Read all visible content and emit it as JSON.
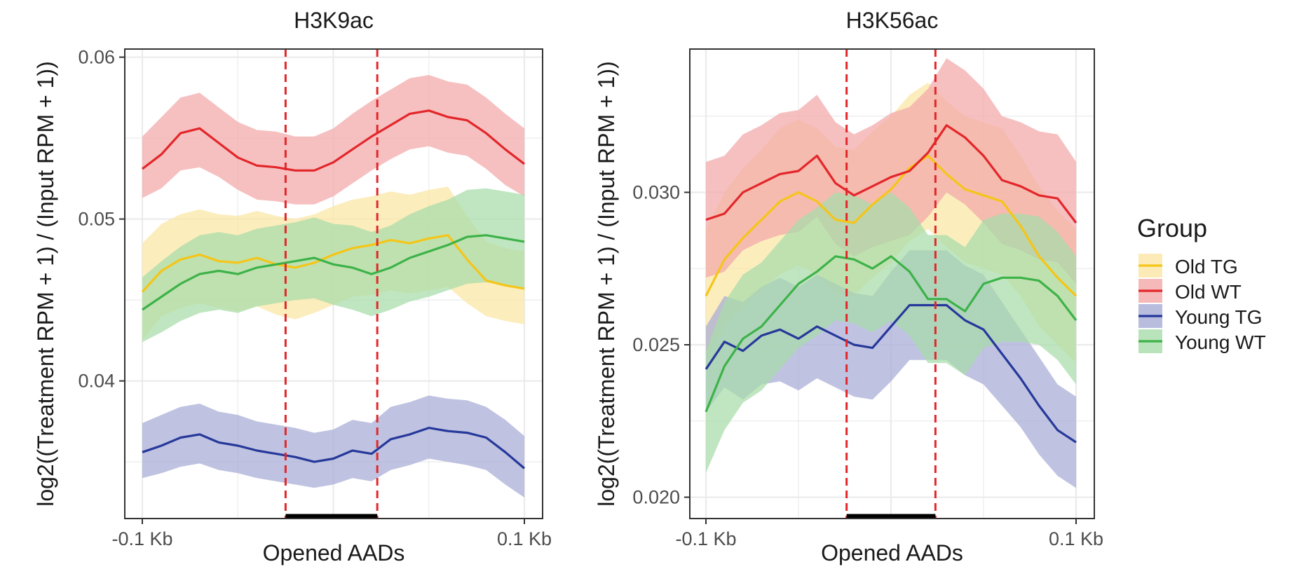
{
  "chart_data": [
    {
      "type": "line",
      "title": "H3K9ac",
      "xlabel": "Opened AADs",
      "ylabel": "log2((Treatment RPM + 1) / (Input RPM + 1))",
      "x_ticks": [
        "-0.1 Kb",
        "0.1 Kb"
      ],
      "y_ticks": [
        "0.04",
        "0.05",
        "0.06"
      ],
      "y_tick_values": [
        0.04,
        0.05,
        0.06
      ],
      "xlim": [
        -0.1,
        0.1
      ],
      "ylim": [
        0.0315,
        0.0605
      ],
      "vlines": [
        -0.025,
        0.023
      ],
      "region": [
        -0.025,
        0.023
      ],
      "x": [
        -0.1,
        -0.09,
        -0.08,
        -0.07,
        -0.06,
        -0.05,
        -0.04,
        -0.03,
        -0.02,
        -0.01,
        0.0,
        0.01,
        0.02,
        0.03,
        0.04,
        0.05,
        0.06,
        0.07,
        0.08,
        0.09,
        0.1
      ],
      "series": [
        {
          "name": "Old TG",
          "values": [
            0.0455,
            0.0468,
            0.0475,
            0.0478,
            0.0474,
            0.0473,
            0.0476,
            0.0472,
            0.047,
            0.0473,
            0.0478,
            0.0482,
            0.0484,
            0.0487,
            0.0485,
            0.0488,
            0.049,
            0.0475,
            0.0462,
            0.0459,
            0.0457
          ],
          "lower": [
            0.0425,
            0.044,
            0.0445,
            0.0448,
            0.0445,
            0.0443,
            0.0446,
            0.0441,
            0.0438,
            0.0442,
            0.0447,
            0.0452,
            0.0453,
            0.0456,
            0.0454,
            0.0456,
            0.0458,
            0.0448,
            0.044,
            0.0437,
            0.0435
          ],
          "upper": [
            0.0485,
            0.0497,
            0.0503,
            0.0506,
            0.0503,
            0.0502,
            0.0505,
            0.0502,
            0.05,
            0.0503,
            0.0508,
            0.0512,
            0.0514,
            0.0517,
            0.0515,
            0.0518,
            0.052,
            0.0502,
            0.0486,
            0.0482,
            0.048
          ]
        },
        {
          "name": "Old WT",
          "values": [
            0.0531,
            0.054,
            0.0553,
            0.0556,
            0.0547,
            0.0538,
            0.0533,
            0.0532,
            0.053,
            0.053,
            0.0535,
            0.0543,
            0.0551,
            0.0558,
            0.0565,
            0.0567,
            0.0563,
            0.0561,
            0.0553,
            0.0543,
            0.0534
          ],
          "lower": [
            0.0513,
            0.0519,
            0.053,
            0.0532,
            0.0526,
            0.0518,
            0.0512,
            0.0511,
            0.0509,
            0.0509,
            0.0514,
            0.0522,
            0.053,
            0.0537,
            0.0543,
            0.0545,
            0.0541,
            0.0539,
            0.0531,
            0.0521,
            0.0514
          ],
          "upper": [
            0.0551,
            0.0563,
            0.0575,
            0.0578,
            0.0569,
            0.056,
            0.0555,
            0.0554,
            0.0551,
            0.0551,
            0.0556,
            0.0565,
            0.0573,
            0.058,
            0.0587,
            0.0589,
            0.0585,
            0.0583,
            0.0575,
            0.0565,
            0.0556
          ]
        },
        {
          "name": "Young TG",
          "values": [
            0.0356,
            0.036,
            0.0365,
            0.0367,
            0.0362,
            0.036,
            0.0357,
            0.0355,
            0.0353,
            0.035,
            0.0352,
            0.0357,
            0.0355,
            0.0364,
            0.0367,
            0.0371,
            0.0369,
            0.0368,
            0.0365,
            0.0356,
            0.0346
          ],
          "lower": [
            0.034,
            0.0343,
            0.0347,
            0.0349,
            0.0345,
            0.0343,
            0.034,
            0.0338,
            0.0336,
            0.0334,
            0.0336,
            0.034,
            0.0338,
            0.0345,
            0.0348,
            0.0352,
            0.035,
            0.0348,
            0.0345,
            0.0336,
            0.0328
          ],
          "upper": [
            0.0374,
            0.0379,
            0.0384,
            0.0386,
            0.0381,
            0.0379,
            0.0375,
            0.0373,
            0.0371,
            0.0368,
            0.037,
            0.0376,
            0.0374,
            0.0384,
            0.0387,
            0.0391,
            0.0389,
            0.0388,
            0.0384,
            0.0376,
            0.0366
          ]
        },
        {
          "name": "Young WT",
          "values": [
            0.0444,
            0.0452,
            0.046,
            0.0466,
            0.0468,
            0.0466,
            0.047,
            0.0472,
            0.0474,
            0.0476,
            0.0472,
            0.047,
            0.0466,
            0.047,
            0.0476,
            0.048,
            0.0484,
            0.0489,
            0.049,
            0.0488,
            0.0486
          ],
          "lower": [
            0.0424,
            0.043,
            0.0437,
            0.0442,
            0.0444,
            0.0442,
            0.0446,
            0.0448,
            0.045,
            0.0451,
            0.0447,
            0.0444,
            0.044,
            0.0444,
            0.0449,
            0.0452,
            0.0456,
            0.046,
            0.0461,
            0.0459,
            0.0457
          ],
          "upper": [
            0.0464,
            0.0474,
            0.0483,
            0.049,
            0.0492,
            0.049,
            0.0494,
            0.0496,
            0.0498,
            0.0501,
            0.0497,
            0.0496,
            0.0492,
            0.0496,
            0.0503,
            0.0508,
            0.0512,
            0.0518,
            0.0519,
            0.0517,
            0.0515
          ]
        }
      ]
    },
    {
      "type": "line",
      "title": "H3K56ac",
      "xlabel": "Opened AADs",
      "ylabel": "log2((Treatment RPM + 1) / (Input RPM + 1))",
      "x_ticks": [
        "-0.1 Kb",
        "0.1 Kb"
      ],
      "y_ticks": [
        "0.020",
        "0.025",
        "0.030"
      ],
      "y_tick_values": [
        0.02,
        0.025,
        0.03
      ],
      "xlim": [
        -0.1,
        0.1
      ],
      "ylim": [
        0.0193,
        0.0347
      ],
      "vlines": [
        -0.024,
        0.024
      ],
      "region": [
        -0.024,
        0.024
      ],
      "x": [
        -0.1,
        -0.09,
        -0.08,
        -0.07,
        -0.06,
        -0.05,
        -0.04,
        -0.03,
        -0.02,
        -0.01,
        0.0,
        0.01,
        0.02,
        0.03,
        0.04,
        0.05,
        0.06,
        0.07,
        0.08,
        0.09,
        0.1
      ],
      "series": [
        {
          "name": "Old TG",
          "values": [
            0.0266,
            0.0278,
            0.0285,
            0.0291,
            0.0297,
            0.03,
            0.0297,
            0.0291,
            0.029,
            0.0296,
            0.0301,
            0.0308,
            0.0312,
            0.0306,
            0.0301,
            0.0299,
            0.0297,
            0.0289,
            0.0279,
            0.0272,
            0.0266
          ],
          "lower": [
            0.0244,
            0.0256,
            0.0262,
            0.0268,
            0.0273,
            0.0276,
            0.0273,
            0.0267,
            0.0266,
            0.0272,
            0.0277,
            0.0284,
            0.0288,
            0.0282,
            0.0277,
            0.0275,
            0.0273,
            0.0266,
            0.0256,
            0.025,
            0.0244
          ],
          "upper": [
            0.0288,
            0.03,
            0.0308,
            0.0314,
            0.0321,
            0.0324,
            0.0321,
            0.0315,
            0.0314,
            0.032,
            0.0325,
            0.0332,
            0.0336,
            0.033,
            0.0325,
            0.0323,
            0.0321,
            0.0312,
            0.0302,
            0.0294,
            0.0288
          ]
        },
        {
          "name": "Old WT",
          "values": [
            0.0291,
            0.0293,
            0.03,
            0.0303,
            0.0306,
            0.0307,
            0.0312,
            0.0303,
            0.0299,
            0.0302,
            0.0305,
            0.0307,
            0.0313,
            0.0322,
            0.0318,
            0.0312,
            0.0304,
            0.0302,
            0.0299,
            0.0298,
            0.029
          ],
          "lower": [
            0.0272,
            0.0274,
            0.0281,
            0.0284,
            0.0286,
            0.0287,
            0.0292,
            0.0283,
            0.0279,
            0.0282,
            0.0284,
            0.0286,
            0.0292,
            0.03,
            0.0296,
            0.029,
            0.0283,
            0.0281,
            0.0278,
            0.0277,
            0.027
          ],
          "upper": [
            0.031,
            0.0312,
            0.0319,
            0.0322,
            0.0326,
            0.0327,
            0.0332,
            0.0323,
            0.0319,
            0.0322,
            0.0326,
            0.0328,
            0.0334,
            0.0344,
            0.034,
            0.0334,
            0.0325,
            0.0323,
            0.032,
            0.0319,
            0.031
          ]
        },
        {
          "name": "Young TG",
          "values": [
            0.0242,
            0.0251,
            0.0248,
            0.0253,
            0.0255,
            0.0252,
            0.0256,
            0.0253,
            0.025,
            0.0249,
            0.0256,
            0.0263,
            0.0263,
            0.0263,
            0.0258,
            0.0255,
            0.0247,
            0.0239,
            0.023,
            0.0222,
            0.0218
          ],
          "lower": [
            0.0228,
            0.0236,
            0.0232,
            0.0237,
            0.0238,
            0.0235,
            0.0239,
            0.0236,
            0.0233,
            0.0232,
            0.0238,
            0.0245,
            0.0245,
            0.0245,
            0.024,
            0.0237,
            0.023,
            0.0223,
            0.0214,
            0.0207,
            0.0203
          ],
          "upper": [
            0.0256,
            0.0266,
            0.0264,
            0.0269,
            0.0272,
            0.0269,
            0.0273,
            0.027,
            0.0267,
            0.0266,
            0.0274,
            0.0281,
            0.0281,
            0.0281,
            0.0276,
            0.0273,
            0.0264,
            0.0255,
            0.0246,
            0.0237,
            0.0233
          ]
        },
        {
          "name": "Young WT",
          "values": [
            0.0228,
            0.0243,
            0.0252,
            0.0256,
            0.0263,
            0.027,
            0.0274,
            0.0279,
            0.0278,
            0.0275,
            0.0279,
            0.0274,
            0.0265,
            0.0265,
            0.0261,
            0.027,
            0.0272,
            0.0272,
            0.0271,
            0.0266,
            0.0258
          ],
          "lower": [
            0.0208,
            0.0222,
            0.0231,
            0.0235,
            0.0242,
            0.0249,
            0.0253,
            0.0258,
            0.0257,
            0.0254,
            0.0258,
            0.0253,
            0.0244,
            0.0244,
            0.024,
            0.0249,
            0.0251,
            0.0251,
            0.025,
            0.0245,
            0.0237
          ],
          "upper": [
            0.0248,
            0.0264,
            0.0273,
            0.0277,
            0.0284,
            0.0291,
            0.0295,
            0.03,
            0.0299,
            0.0296,
            0.03,
            0.0295,
            0.0286,
            0.0286,
            0.0282,
            0.0291,
            0.0293,
            0.0293,
            0.0292,
            0.0287,
            0.0279
          ]
        }
      ]
    }
  ],
  "legend": {
    "title": "Group",
    "position": "right",
    "items": [
      {
        "label": "Old TG",
        "color": "#F5C518",
        "fill": "#FBE6A4"
      },
      {
        "label": "Old WT",
        "color": "#E3262A",
        "fill": "#F3A7A9"
      },
      {
        "label": "Young TG",
        "color": "#26389A",
        "fill": "#A6ACD6"
      },
      {
        "label": "Young WT",
        "color": "#3DB249",
        "fill": "#A8DCA9"
      }
    ]
  },
  "colors": {
    "vline": "#E3262A",
    "region_bar": "#000000",
    "grid": "#EBEBEB",
    "panel_border": "#333333"
  }
}
